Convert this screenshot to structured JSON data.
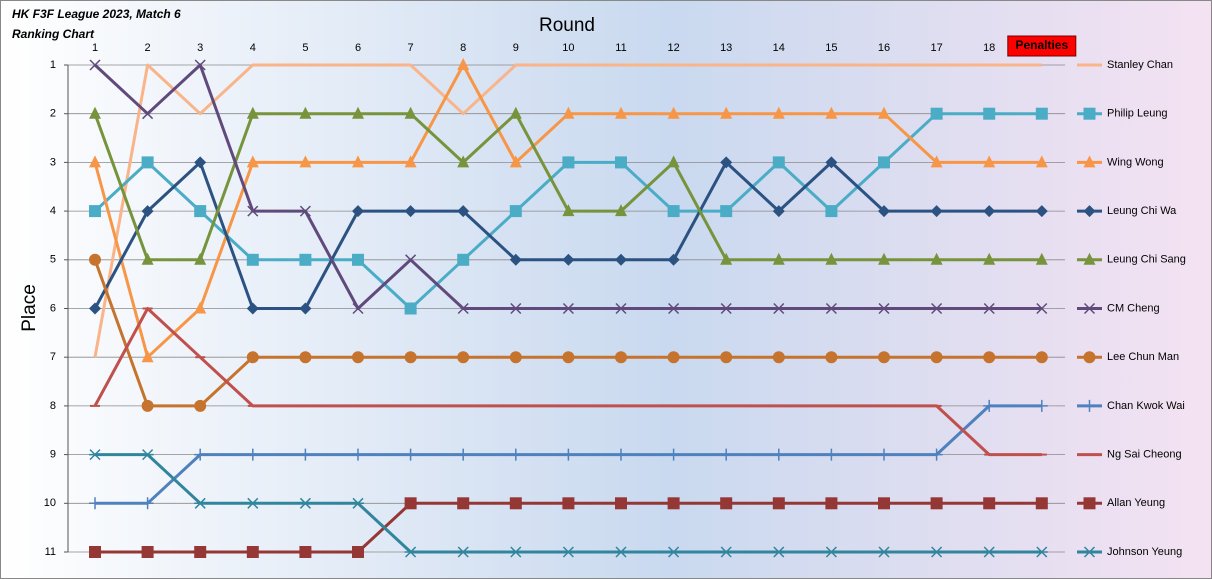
{
  "chart_data": {
    "type": "line",
    "title": "HK F3F League 2023, Match 6",
    "subtitle": "Ranking Chart",
    "x_label": "Round",
    "y_label": "Place",
    "categories": [
      "1",
      "2",
      "3",
      "4",
      "5",
      "6",
      "7",
      "8",
      "9",
      "10",
      "11",
      "12",
      "13",
      "14",
      "15",
      "16",
      "17",
      "18",
      "Penalties"
    ],
    "highlight_category": {
      "index": 18,
      "color": "#ff0000"
    },
    "ylim": [
      1,
      11
    ],
    "yticks": [
      1,
      2,
      3,
      4,
      5,
      6,
      7,
      8,
      9,
      10,
      11
    ],
    "y_inverted": true,
    "grid": true,
    "legend": "right",
    "series": [
      {
        "name": "Stanley Chan",
        "color": "#f9b48a",
        "marker": "none",
        "values": [
          7,
          1,
          2,
          1,
          1,
          1,
          1,
          2,
          1,
          1,
          1,
          1,
          1,
          1,
          1,
          1,
          1,
          1,
          1
        ]
      },
      {
        "name": "Philip Leung",
        "color": "#4bacc6",
        "marker": "square",
        "values": [
          4,
          3,
          4,
          5,
          5,
          5,
          6,
          5,
          4,
          3,
          3,
          4,
          4,
          3,
          4,
          3,
          2,
          2,
          2
        ]
      },
      {
        "name": "Wing Wong",
        "color": "#f79646",
        "marker": "triangle",
        "values": [
          3,
          7,
          6,
          3,
          3,
          3,
          3,
          1,
          3,
          2,
          2,
          2,
          2,
          2,
          2,
          2,
          3,
          3,
          3
        ]
      },
      {
        "name": "Leung Chi Wa",
        "color": "#2c5282",
        "marker": "diamond",
        "values": [
          6,
          4,
          3,
          6,
          6,
          4,
          4,
          4,
          5,
          5,
          5,
          5,
          3,
          4,
          3,
          4,
          4,
          4,
          4
        ]
      },
      {
        "name": "Leung Chi Sang",
        "color": "#77933c",
        "marker": "triangle",
        "values": [
          2,
          5,
          5,
          2,
          2,
          2,
          2,
          3,
          2,
          4,
          4,
          3,
          5,
          5,
          5,
          5,
          5,
          5,
          5
        ]
      },
      {
        "name": "CM Cheng",
        "color": "#604a7b",
        "marker": "x",
        "values": [
          1,
          2,
          1,
          4,
          4,
          6,
          5,
          6,
          6,
          6,
          6,
          6,
          6,
          6,
          6,
          6,
          6,
          6,
          6
        ]
      },
      {
        "name": "Lee Chun Man",
        "color": "#c5732d",
        "marker": "circle",
        "values": [
          5,
          8,
          8,
          7,
          7,
          7,
          7,
          7,
          7,
          7,
          7,
          7,
          7,
          7,
          7,
          7,
          7,
          7,
          7
        ]
      },
      {
        "name": "Chan Kwok Wai",
        "color": "#4f81bd",
        "marker": "plus",
        "values": [
          10,
          10,
          9,
          9,
          9,
          9,
          9,
          9,
          9,
          9,
          9,
          9,
          9,
          9,
          9,
          9,
          9,
          8,
          8
        ]
      },
      {
        "name": "Ng Sai Cheong",
        "color": "#c0504d",
        "marker": "dash",
        "values": [
          8,
          6,
          7,
          8,
          8,
          8,
          8,
          8,
          8,
          8,
          8,
          8,
          8,
          8,
          8,
          8,
          8,
          9,
          9
        ]
      },
      {
        "name": "Allan Yeung",
        "color": "#953735",
        "marker": "square",
        "values": [
          11,
          11,
          11,
          11,
          11,
          11,
          10,
          10,
          10,
          10,
          10,
          10,
          10,
          10,
          10,
          10,
          10,
          10,
          10
        ]
      },
      {
        "name": "Johnson Yeung",
        "color": "#31859c",
        "marker": "star",
        "values": [
          9,
          9,
          10,
          10,
          10,
          10,
          11,
          11,
          11,
          11,
          11,
          11,
          11,
          11,
          11,
          11,
          11,
          11,
          11
        ]
      }
    ]
  }
}
